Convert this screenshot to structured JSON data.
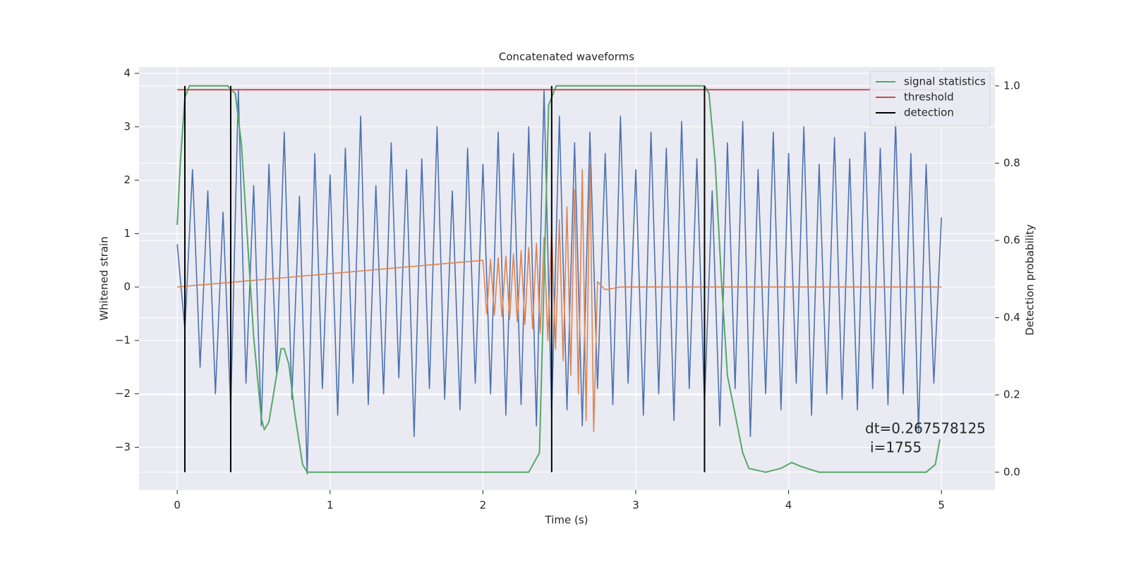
{
  "chart_data": {
    "type": "line",
    "title": "Concatenated waveforms",
    "xlabel": "Time (s)",
    "ylabel": "Whitened strain",
    "y2label": "Detection probability",
    "annotation": [
      "dt=0.267578125",
      "i=1755"
    ],
    "xlim": [
      -0.25,
      5.35
    ],
    "ylim": [
      -3.8,
      4.12
    ],
    "y2lim": [
      -0.046,
      1.049
    ],
    "xticks": [
      0,
      1,
      2,
      3,
      4,
      5
    ],
    "yticks": [
      {
        "value": -3,
        "label": "−3"
      },
      {
        "value": -2,
        "label": "−2"
      },
      {
        "value": -1,
        "label": "−1"
      },
      0,
      1,
      2,
      3,
      4
    ],
    "y2ticks": [
      {
        "value": 0,
        "label": "0.0"
      },
      {
        "value": 0.2,
        "label": "0.2"
      },
      {
        "value": 0.4,
        "label": "0.4"
      },
      {
        "value": 0.6,
        "label": "0.6"
      },
      {
        "value": 0.8,
        "label": "0.8"
      },
      {
        "value": 1,
        "label": "1.0"
      }
    ],
    "grid": true,
    "legend": "upper right",
    "series": [
      {
        "color": "#4c72b0",
        "x": [
          0,
          0.05,
          0.1,
          0.15,
          0.2,
          0.25,
          0.3,
          0.35,
          0.4,
          0.45,
          0.5,
          0.55,
          0.6,
          0.65,
          0.7,
          0.75,
          0.8,
          0.85,
          0.9,
          0.95,
          1,
          1.05,
          1.1,
          1.15,
          1.2,
          1.25,
          1.3,
          1.35,
          1.4,
          1.45,
          1.5,
          1.55,
          1.6,
          1.65,
          1.7,
          1.75,
          1.8,
          1.85,
          1.9,
          1.95,
          2,
          2.05,
          2.1,
          2.15,
          2.2,
          2.25,
          2.3,
          2.35,
          2.4,
          2.45,
          2.5,
          2.55,
          2.6,
          2.65,
          2.7,
          2.75,
          2.8,
          2.85,
          2.9,
          2.95,
          3,
          3.05,
          3.1,
          3.15,
          3.2,
          3.25,
          3.3,
          3.35,
          3.4,
          3.45,
          3.5,
          3.55,
          3.6,
          3.65,
          3.7,
          3.75,
          3.8,
          3.85,
          3.9,
          3.95,
          4,
          4.05,
          4.1,
          4.15,
          4.2,
          4.25,
          4.3,
          4.35,
          4.4,
          4.45,
          4.5,
          4.55,
          4.6,
          4.65,
          4.7,
          4.75,
          4.8,
          4.85,
          4.9,
          4.95,
          5
        ],
        "values": [
          0.8,
          -0.8,
          2.2,
          -1.5,
          1.8,
          -2.0,
          1.4,
          -2.3,
          3.7,
          -1.8,
          1.9,
          -2.6,
          2.3,
          -1.6,
          2.9,
          -2.1,
          1.7,
          -3.5,
          2.5,
          -1.9,
          2.1,
          -2.4,
          2.6,
          -1.8,
          3.2,
          -2.2,
          1.9,
          -2.0,
          2.7,
          -1.7,
          2.2,
          -2.8,
          2.4,
          -1.9,
          3.0,
          -2.1,
          1.8,
          -2.3,
          2.6,
          -1.8,
          2.3,
          -2.0,
          2.9,
          -2.4,
          2.5,
          -2.2,
          3.0,
          -2.6,
          3.7,
          -2.4,
          3.2,
          -2.3,
          2.7,
          -2.6,
          2.9,
          -1.9,
          2.5,
          -2.2,
          3.2,
          -1.8,
          2.2,
          -2.4,
          2.9,
          -2.0,
          2.6,
          -2.5,
          3.1,
          -1.9,
          2.4,
          -2.2,
          1.8,
          -2.6,
          2.7,
          -1.9,
          3.1,
          -2.8,
          2.2,
          -2.0,
          2.9,
          -2.3,
          2.5,
          -1.8,
          3.0,
          -2.4,
          2.3,
          -2.0,
          2.8,
          -2.1,
          2.4,
          -2.3,
          2.9,
          -1.9,
          2.6,
          -2.2,
          3.1,
          -2.0,
          2.5,
          -2.7,
          2.3,
          -1.8,
          1.3
        ]
      },
      {
        "color": "#dd8452",
        "x": [
          0,
          2,
          2.025,
          2.05,
          2.075,
          2.1,
          2.125,
          2.15,
          2.175,
          2.2,
          2.225,
          2.25,
          2.275,
          2.3,
          2.325,
          2.35,
          2.375,
          2.4,
          2.425,
          2.45,
          2.475,
          2.5,
          2.525,
          2.55,
          2.575,
          2.6,
          2.625,
          2.65,
          2.675,
          2.7,
          2.725,
          2.75,
          2.8,
          2.9,
          5
        ],
        "values": [
          0,
          0.5,
          -0.5,
          0.52,
          -0.53,
          0.55,
          -0.56,
          0.58,
          -0.6,
          0.62,
          -0.65,
          0.68,
          -0.7,
          0.74,
          -0.78,
          0.82,
          -0.87,
          0.93,
          -1.0,
          1.08,
          -1.16,
          1.26,
          -1.38,
          1.5,
          -1.65,
          1.82,
          -2.0,
          2.2,
          -2.5,
          2.3,
          -2.7,
          0.1,
          -0.05,
          0,
          0
        ]
      },
      {
        "name": "signal statistics",
        "color": "#55a868",
        "axis": "y2",
        "x": [
          0,
          0.02,
          0.05,
          0.08,
          0.2,
          0.33,
          0.38,
          0.42,
          0.46,
          0.5,
          0.55,
          0.57,
          0.6,
          0.65,
          0.68,
          0.7,
          0.73,
          0.77,
          0.82,
          0.85,
          1.5,
          2.3,
          2.37,
          2.4,
          2.43,
          2.48,
          3,
          3.45,
          3.48,
          3.52,
          3.56,
          3.6,
          3.65,
          3.7,
          3.74,
          3.85,
          3.95,
          4.02,
          4.08,
          4.2,
          4.9,
          4.96,
          4.99
        ],
        "values": [
          0.64,
          0.8,
          0.97,
          1.0,
          1.0,
          1.0,
          0.98,
          0.85,
          0.6,
          0.35,
          0.14,
          0.11,
          0.13,
          0.25,
          0.32,
          0.32,
          0.28,
          0.15,
          0.02,
          0.0,
          0.0,
          0.0,
          0.05,
          0.5,
          0.95,
          1.0,
          1.0,
          1.0,
          0.98,
          0.8,
          0.5,
          0.25,
          0.15,
          0.05,
          0.01,
          0.0,
          0.01,
          0.025,
          0.015,
          0.0,
          0.0,
          0.02,
          0.085
        ]
      },
      {
        "name": "threshold",
        "color": "#c44e52",
        "axis": "y2",
        "x": [
          0,
          5
        ],
        "values": [
          0.99,
          0.99
        ]
      },
      {
        "name": "detection",
        "color": "#000000",
        "x": [
          0.05,
          0.35,
          2.45,
          3.45
        ]
      }
    ]
  }
}
